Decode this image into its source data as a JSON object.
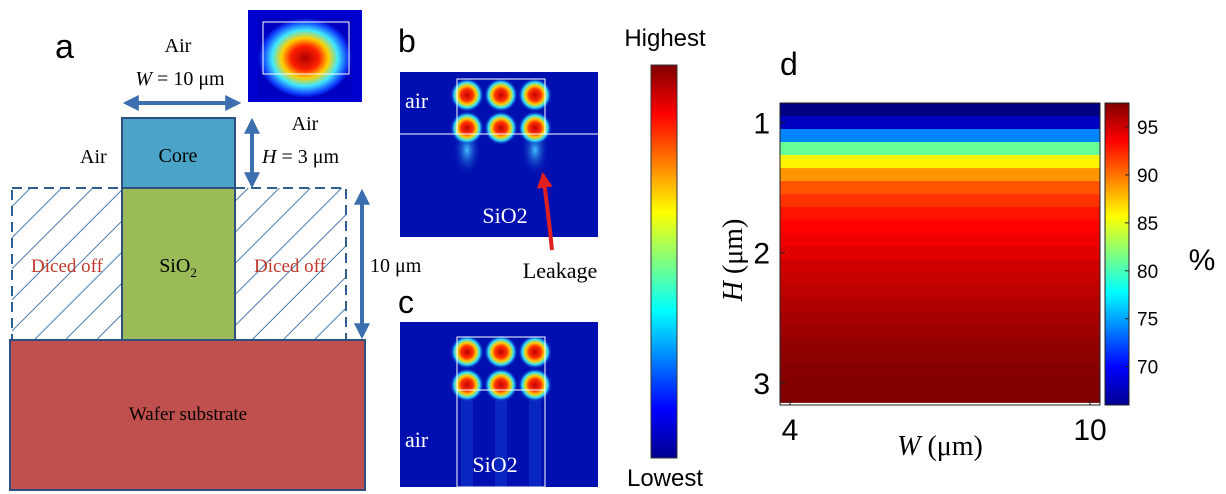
{
  "panel_a": {
    "label": "a",
    "air_top": "Air",
    "width_var": "W",
    "width_value": "= 10 μm",
    "air_right": "Air",
    "air_left": "Air",
    "core": "Core",
    "height_var": "H",
    "height_value": "= 3 μm",
    "diced_left": "Diced off",
    "diced_right": "Diced off",
    "sio2_base": "SiO",
    "sio2_sub": "2",
    "depth": "10 μm",
    "substrate": "Wafer substrate"
  },
  "panel_b": {
    "label": "b",
    "air": "air",
    "sio2": "SiO2",
    "leakage": "Leakage"
  },
  "panel_c": {
    "label": "c",
    "air": "air",
    "sio2": "SiO2"
  },
  "field_colorbar": {
    "high": "Highest",
    "low": "Lowest"
  },
  "chart_data": {
    "type": "heatmap",
    "label": "d",
    "x_label_var": "W",
    "x_label_unit": "(μm)",
    "y_label_var": "H",
    "y_label_unit": "(μm)",
    "colorbar_label": "%",
    "xlim": [
      3.8,
      10.2
    ],
    "xticks": [
      4,
      10
    ],
    "ylim": [
      0.85,
      3.17
    ],
    "yticks": [
      1,
      2,
      3
    ],
    "y": [
      0.9,
      1.0,
      1.1,
      1.2,
      1.3,
      1.4,
      1.5,
      1.6,
      1.7,
      1.8,
      1.9,
      2.0,
      2.1,
      2.2,
      2.3,
      2.4,
      2.5,
      2.6,
      2.7,
      2.8,
      2.9,
      3.0,
      3.1
    ],
    "values": [
      66,
      68,
      74,
      81,
      86,
      89,
      91,
      92,
      93,
      93.5,
      94,
      94.5,
      95,
      95.3,
      95.6,
      96,
      96.3,
      96.6,
      96.9,
      97.1,
      97.3,
      97.4,
      97.5
    ],
    "clim": [
      66,
      97.5
    ],
    "cticks": [
      70,
      75,
      80,
      85,
      90,
      95
    ],
    "colormap": "jet"
  }
}
